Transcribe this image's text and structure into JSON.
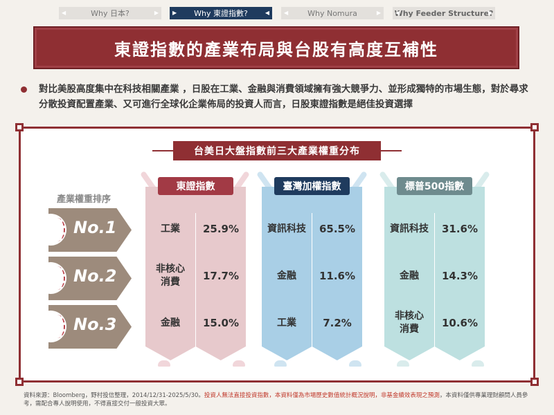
{
  "nav": {
    "tabs": [
      {
        "label": "Why 日本?",
        "active": false
      },
      {
        "label": "Why 東證指數?",
        "active": true
      },
      {
        "label": "Why Nomura",
        "active": false
      },
      {
        "label": "Why Feeder Structure?",
        "active": false
      }
    ]
  },
  "title": "東證指數的產業布局與台股有高度互補性",
  "intro": "對比美股高度集中在科技相關產業 ，日股在工業、金融與消費領域擁有強大競爭力、並形成獨特的市場生態，對於尋求分散投資配置產業、又可進行全球化企業佈局的投資人而言，日股東證指數是絕佳投資選擇",
  "chart": {
    "title": "台美日大盤指數前三大產業權重分布",
    "rank_header": "產業權重排序",
    "ranks": [
      "No.1",
      "No.2",
      "No.3"
    ],
    "indices": [
      {
        "name": "東證指數",
        "rows": [
          {
            "sector": "工業",
            "weight": "25.9%"
          },
          {
            "sector": "非核心\n消費",
            "weight": "17.7%"
          },
          {
            "sector": "金融",
            "weight": "15.0%"
          }
        ]
      },
      {
        "name": "臺灣加權指數",
        "rows": [
          {
            "sector": "資訊科技",
            "weight": "65.5%"
          },
          {
            "sector": "金融",
            "weight": "11.6%"
          },
          {
            "sector": "工業",
            "weight": "7.2%"
          }
        ]
      },
      {
        "name": "標普500指數",
        "rows": [
          {
            "sector": "資訊科技",
            "weight": "31.6%"
          },
          {
            "sector": "金融",
            "weight": "14.3%"
          },
          {
            "sector": "非核心\n消費",
            "weight": "10.6%"
          }
        ]
      }
    ]
  },
  "footnote": {
    "part1": "資料來源：Bloomberg，野村投信整理，2014/12/31-2025/5/30。",
    "part2_red": "投資人無法直接投資指數，本資料僅為市場歷史數值統計概況說明，非基金績效表現之預測",
    "part3": "，本資料僅供專業理財顧問人員參考，需配合專人說明使用，不得直接交付一般投資大眾。"
  },
  "colors": {
    "brand_red": "#8f2f33",
    "navy": "#1f3b5e",
    "tse_header": "#a23a45",
    "tse_body": "#e7c9cc",
    "taiex_body": "#a9cfe6",
    "sp500_header": "#6e8b8e",
    "sp500_body": "#bde0e0",
    "rank_brown": "#9d8b7c"
  }
}
